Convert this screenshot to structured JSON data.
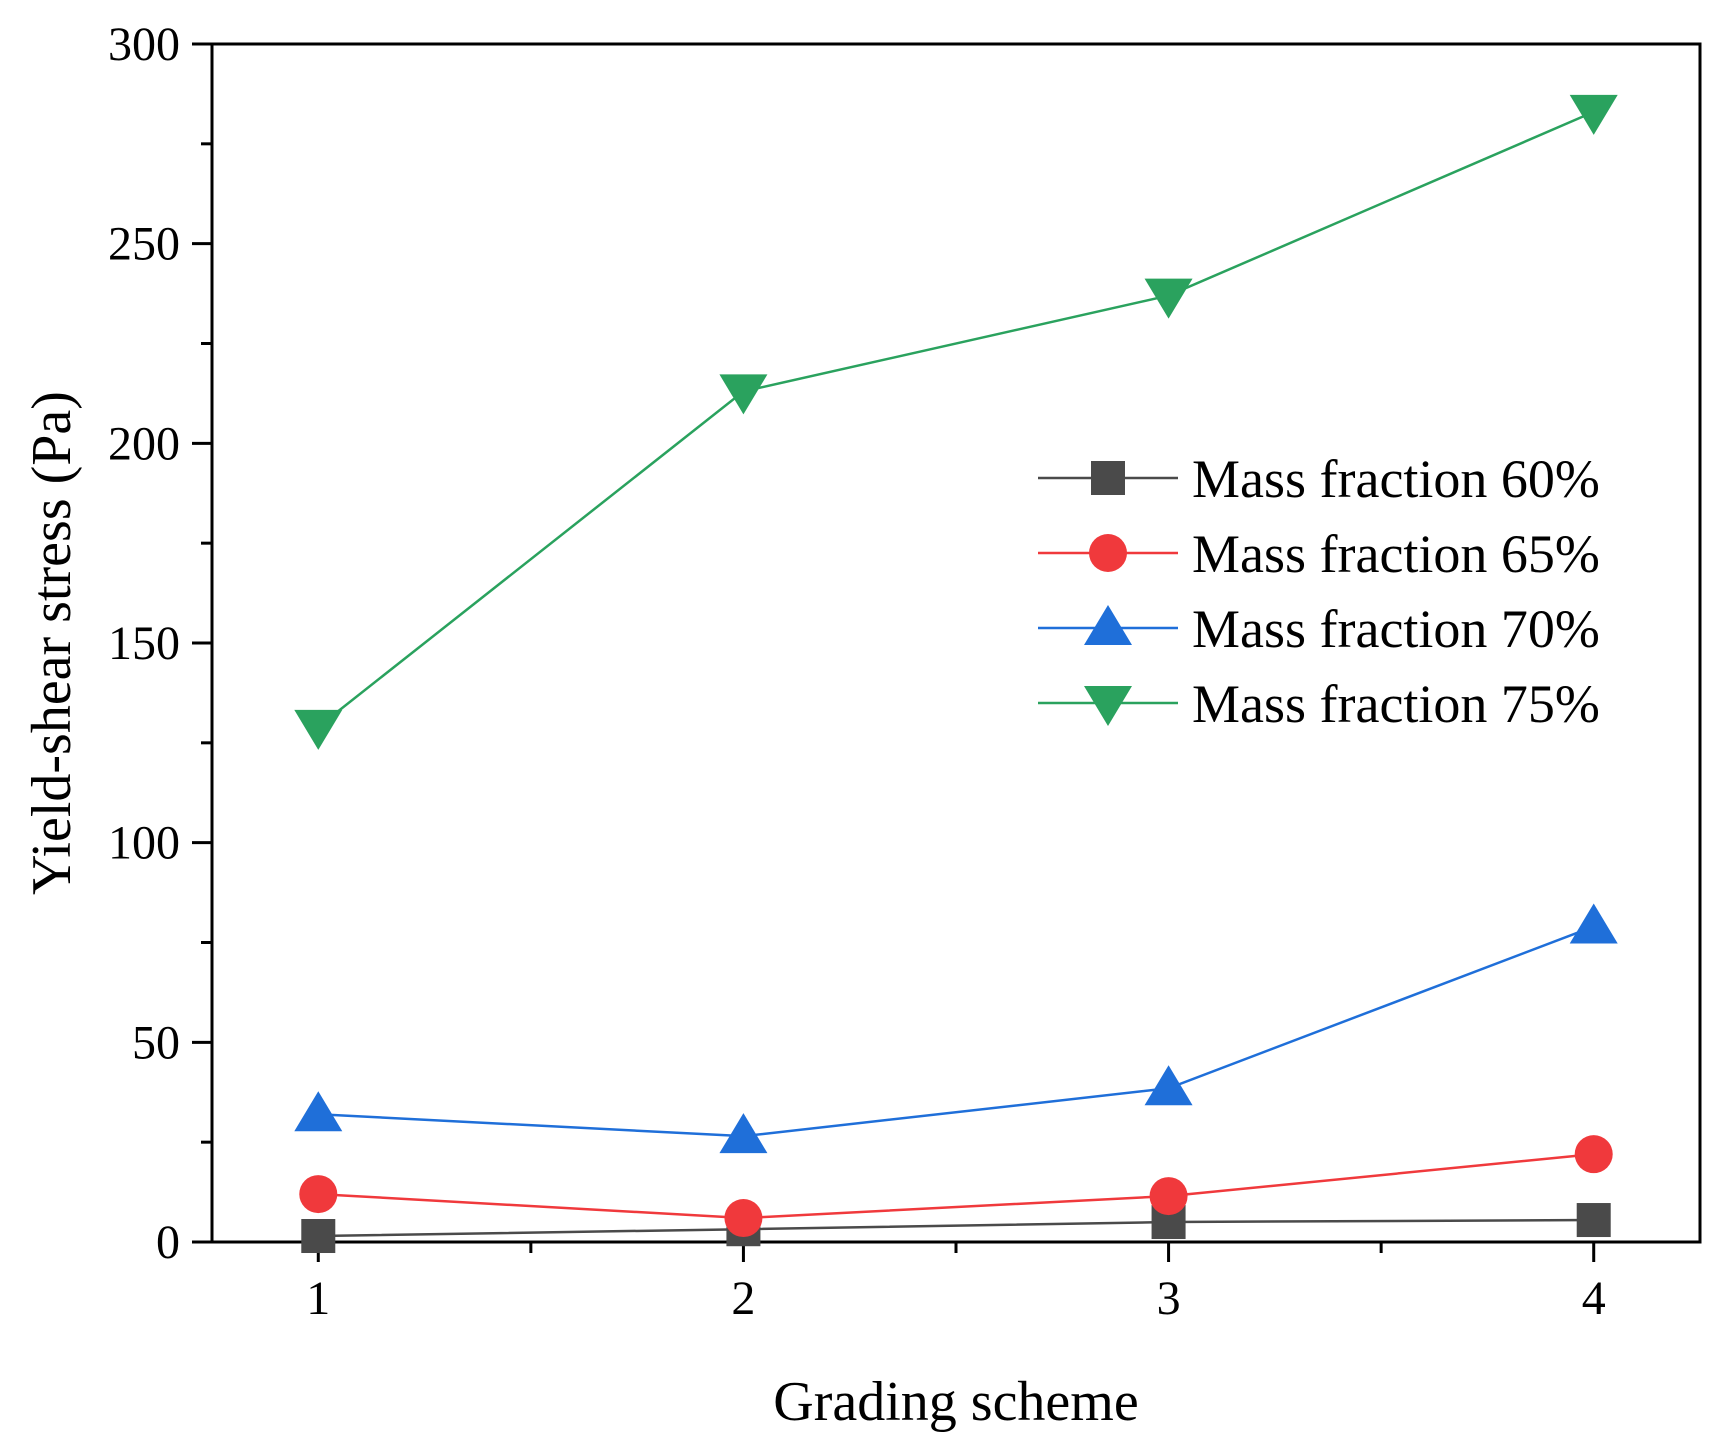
{
  "chart_data": {
    "type": "line",
    "title": "",
    "xlabel": "Grading scheme",
    "ylabel": "Yield-shear stress (Pa)",
    "x": [
      1,
      2,
      3,
      4
    ],
    "x_ticks": [
      "1",
      "2",
      "3",
      "4"
    ],
    "xlim": [
      0.75,
      4.25
    ],
    "ylim": [
      0,
      300
    ],
    "y_ticks": [
      "0",
      "50",
      "100",
      "150",
      "200",
      "250",
      "300"
    ],
    "grid": false,
    "legend_position": "right",
    "series": [
      {
        "name": "Mass fraction 60%",
        "values": [
          1.5,
          3.2,
          5.0,
          5.5
        ],
        "color": "#4a4a4a",
        "marker": "square"
      },
      {
        "name": "Mass fraction 65%",
        "values": [
          12,
          6,
          11.5,
          22
        ],
        "color": "#f0393c",
        "marker": "circle"
      },
      {
        "name": "Mass fraction 70%",
        "values": [
          32,
          26.5,
          38.5,
          79
        ],
        "color": "#1f6fd9",
        "marker": "triangle-up"
      },
      {
        "name": "Mass fraction 75%",
        "values": [
          129,
          213,
          237,
          283
        ],
        "color": "#2aa25e",
        "marker": "triangle-down"
      }
    ]
  }
}
